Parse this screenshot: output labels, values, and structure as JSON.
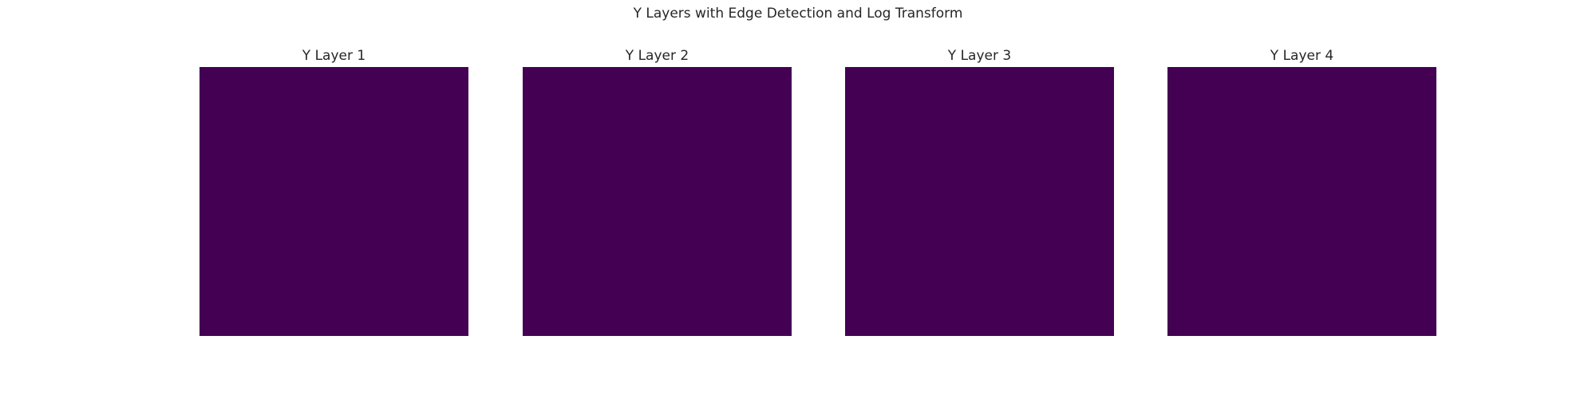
{
  "suptitle": "Y Layers with Edge Detection and Log Transform",
  "chart_data": [
    {
      "type": "heatmap",
      "title": "Y Layer 1",
      "colormap": "viridis",
      "fill_color": "#440154",
      "axes_visible": false,
      "grid": false
    },
    {
      "type": "heatmap",
      "title": "Y Layer 2",
      "colormap": "viridis",
      "fill_color": "#440154",
      "axes_visible": false,
      "grid": false
    },
    {
      "type": "heatmap",
      "title": "Y Layer 3",
      "colormap": "viridis",
      "fill_color": "#440154",
      "axes_visible": false,
      "grid": false
    },
    {
      "type": "heatmap",
      "title": "Y Layer 4",
      "colormap": "viridis",
      "fill_color": "#440154",
      "axes_visible": false,
      "grid": false
    }
  ]
}
